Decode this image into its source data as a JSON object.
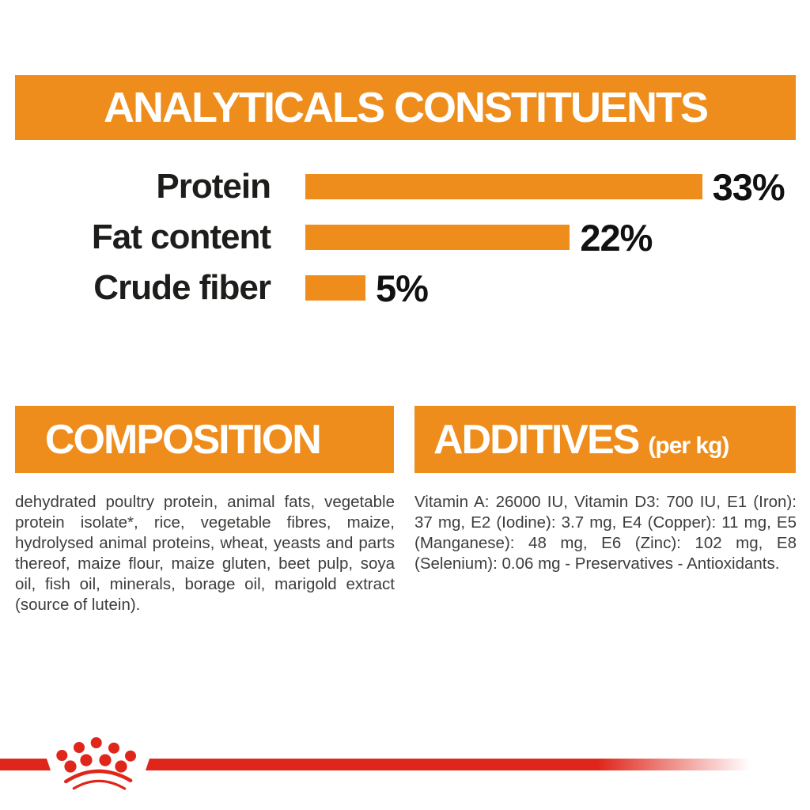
{
  "colors": {
    "orange": "#EE8D1B",
    "red": "#E0251A",
    "banner_text": "#FFFFFF",
    "label_text": "#1D1D1B",
    "body_text": "#3D3D3B"
  },
  "header": {
    "title": "ANALYTICALS CONSTITUENTS"
  },
  "chart_data": {
    "type": "bar",
    "orientation": "horizontal",
    "title": "ANALYTICALS CONSTITUENTS",
    "categories": [
      "Protein",
      "Fat content",
      "Crude fiber"
    ],
    "values": [
      33,
      22,
      5
    ],
    "unit": "%",
    "value_labels": [
      "33%",
      "22%",
      "5%"
    ],
    "bar_color": "#EE8D1B",
    "xlim": [
      0,
      33
    ],
    "grid": false,
    "legend": false
  },
  "sections": {
    "composition": {
      "title": "COMPOSITION",
      "body": "dehydrated poultry protein, animal fats, vegetable protein isolate*, rice, vegetable fibres, maize, hydrolysed animal proteins, wheat, yeasts and parts thereof, maize flour, maize gluten, beet pulp, soya oil, fish oil, minerals, borage oil, marigold extract (source of lutein)."
    },
    "additives": {
      "title": "ADDITIVES",
      "unit_note": "(per kg)",
      "body": "Vitamin A: 26000 IU, Vitamin D3: 700 IU, E1 (Iron): 37 mg, E2 (Iodine): 3.7 mg, E4 (Copper): 11 mg, E5 (Manganese): 48 mg, E6 (Zinc): 102 mg, E8 (Selenium): 0.06 mg - Preservatives - Antioxidants."
    }
  }
}
